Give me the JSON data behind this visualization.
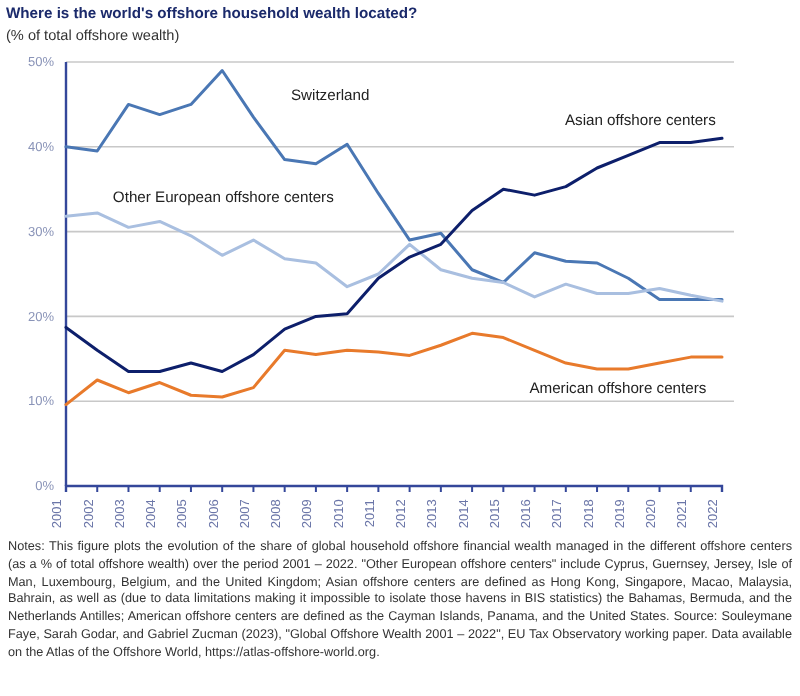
{
  "chart_data": {
    "type": "line",
    "title": "Where is the world's offshore household wealth located?",
    "subtitle": "(% of total offshore wealth)",
    "categories": [
      "2001",
      "2002",
      "2003",
      "2004",
      "2005",
      "2006",
      "2007",
      "2008",
      "2009",
      "2010",
      "2011",
      "2012",
      "2013",
      "2014",
      "2015",
      "2016",
      "2017",
      "2018",
      "2019",
      "2020",
      "2021",
      "2022"
    ],
    "series": [
      {
        "name": "Switzerland",
        "color": "#4a77b4",
        "values": [
          40,
          39.5,
          45,
          43.8,
          45,
          49,
          43.5,
          38.5,
          38,
          40.3,
          34.5,
          29,
          29.8,
          25.5,
          24,
          27.5,
          26.5,
          26.3,
          24.5,
          22,
          22,
          22
        ]
      },
      {
        "name": "Other European offshore centers",
        "color": "#a9bfe0",
        "values": [
          31.8,
          32.2,
          30.5,
          31.2,
          29.5,
          27.2,
          29,
          26.8,
          26.3,
          23.5,
          25,
          28.5,
          25.5,
          24.5,
          24,
          22.3,
          23.8,
          22.7,
          22.7,
          23.3,
          22.5,
          21.8
        ]
      },
      {
        "name": "Asian offshore centers",
        "color": "#0d1f6b",
        "values": [
          18.7,
          16,
          13.5,
          13.5,
          14.5,
          13.5,
          15.5,
          18.5,
          20,
          20.3,
          24.5,
          27,
          28.5,
          32.5,
          35,
          34.3,
          35.3,
          37.5,
          39,
          40.5,
          40.5,
          41
        ]
      },
      {
        "name": "American offshore centers",
        "color": "#e87a2b",
        "values": [
          9.6,
          12.5,
          11,
          12.2,
          10.7,
          10.5,
          11.6,
          16,
          15.5,
          16,
          15.8,
          15.4,
          16.6,
          18,
          17.5,
          16,
          14.5,
          13.8,
          13.8,
          14.5,
          15.2,
          15.2
        ]
      }
    ],
    "ylim": [
      0,
      50
    ],
    "yticks": [
      {
        "value": 0,
        "label": "0%"
      },
      {
        "value": 10,
        "label": "10%"
      },
      {
        "value": 20,
        "label": "20%"
      },
      {
        "value": 30,
        "label": "30%"
      },
      {
        "value": 40,
        "label": "40%"
      },
      {
        "value": 50,
        "label": "50%"
      }
    ],
    "grid": "y",
    "legend": false,
    "marker": "none",
    "line_style": "solid",
    "annotations": [
      "Notes: This figure plots the evolution of the share of global household offshore financial wealth managed in the different offshore centers (as a % of total offshore wealth) over the period 2001 – 2022. \"Other European offshore centers\" include Cyprus, Guernsey, Jersey, Isle of Man, Luxembourg, Belgium, and the United Kingdom; Asian offshore centers are defined as Hong Kong, Singapore, Macao, Malaysia, Bahrain, as well as (due to data limitations making it impossible to isolate those havens in BIS statistics) the Bahamas, Bermuda, and the Netherlands Antilles; American offshore centers are defined as the Cayman Islands, Panama, and the United States. Source: Souleymane Faye, Sarah Godar, and Gabriel Zucman (2023), \"Global Offshore Wealth 2001 – 2022\", EU Tax Observatory working paper. Data available on the Atlas of the Offshore World, https://atlas-offshore-world.org."
    ]
  }
}
